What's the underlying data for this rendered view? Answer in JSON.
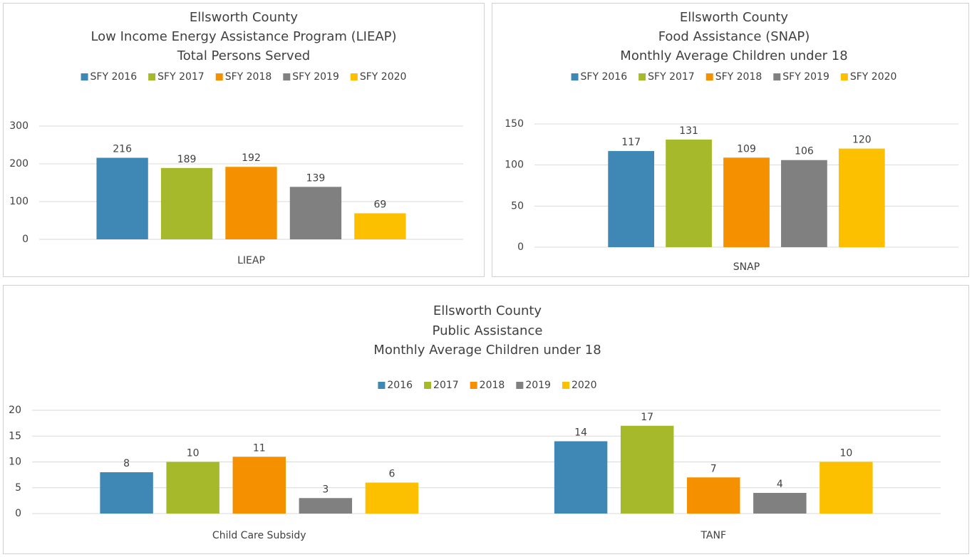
{
  "chart_data": [
    {
      "type": "bar",
      "title": [
        "Ellsworth County",
        "Low Income Energy Assistance Program (LIEAP)",
        "Total Persons Served"
      ],
      "categories": [
        "LIEAP"
      ],
      "series": [
        {
          "name": "SFY 2016",
          "color": "#3f87b5",
          "values": [
            216
          ]
        },
        {
          "name": "SFY 2017",
          "color": "#a5b92b",
          "values": [
            189
          ]
        },
        {
          "name": "SFY 2018",
          "color": "#f59100",
          "values": [
            192
          ]
        },
        {
          "name": "SFY 2019",
          "color": "#808080",
          "values": [
            139
          ]
        },
        {
          "name": "SFY 2020",
          "color": "#fcc000",
          "values": [
            69
          ]
        }
      ],
      "ylim": [
        0,
        300
      ],
      "yticks": [
        0,
        100,
        200,
        300
      ],
      "grid": true,
      "legend": "top"
    },
    {
      "type": "bar",
      "title": [
        "Ellsworth County",
        "Food Assistance (SNAP)",
        "Monthly Average Children under 18"
      ],
      "categories": [
        "SNAP"
      ],
      "series": [
        {
          "name": "SFY 2016",
          "color": "#3f87b5",
          "values": [
            117
          ]
        },
        {
          "name": "SFY 2017",
          "color": "#a5b92b",
          "values": [
            131
          ]
        },
        {
          "name": "SFY 2018",
          "color": "#f59100",
          "values": [
            109
          ]
        },
        {
          "name": "SFY 2019",
          "color": "#808080",
          "values": [
            106
          ]
        },
        {
          "name": "SFY 2020",
          "color": "#fcc000",
          "values": [
            120
          ]
        }
      ],
      "ylim": [
        0,
        150
      ],
      "yticks": [
        0,
        50,
        100,
        150
      ],
      "grid": true,
      "legend": "top"
    },
    {
      "type": "bar",
      "title": [
        "Ellsworth County",
        "Public Assistance",
        "Monthly Average Children under 18"
      ],
      "categories": [
        "Child Care Subsidy",
        "TANF"
      ],
      "series": [
        {
          "name": "2016",
          "color": "#3f87b5",
          "values": [
            8,
            14
          ]
        },
        {
          "name": "2017",
          "color": "#a5b92b",
          "values": [
            10,
            17
          ]
        },
        {
          "name": "2018",
          "color": "#f59100",
          "values": [
            11,
            7
          ]
        },
        {
          "name": "2019",
          "color": "#808080",
          "values": [
            3,
            4
          ]
        },
        {
          "name": "2020",
          "color": "#fcc000",
          "values": [
            6,
            10
          ]
        }
      ],
      "ylim": [
        0,
        20
      ],
      "yticks": [
        0,
        5,
        10,
        15,
        20
      ],
      "grid": true,
      "legend": "top"
    }
  ]
}
